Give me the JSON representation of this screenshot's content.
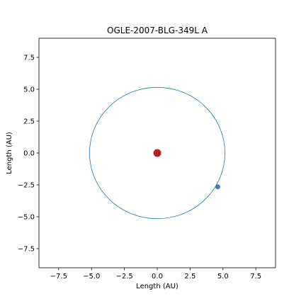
{
  "chart_data": {
    "type": "scatter",
    "title": "OGLE-2007-BLG-349L A",
    "xlabel": "Length (AU)",
    "ylabel": "Length (AU)",
    "xlim": [
      -9,
      9
    ],
    "ylim": [
      -9,
      9
    ],
    "grid": false,
    "x_ticks": [
      -7.5,
      -5.0,
      -2.5,
      0.0,
      2.5,
      5.0,
      7.5
    ],
    "x_tick_labels": [
      "−7.5",
      "−5.0",
      "−2.5",
      "0.0",
      "2.5",
      "5.0",
      "7.5"
    ],
    "y_ticks": [
      7.5,
      5.0,
      2.5,
      0.0,
      -2.5,
      -5.0,
      -7.5
    ],
    "y_tick_labels": [
      "7.5",
      "5.0",
      "2.5",
      "0.0",
      "−2.5",
      "−5.0",
      "−7.5"
    ],
    "star": {
      "x": 0.0,
      "y": 0.0,
      "color": "#b22222"
    },
    "orbit": {
      "center_x": 0.0,
      "center_y": 0.0,
      "radius": 5.15,
      "color": "#1f77b4"
    },
    "planet": {
      "x": 4.6,
      "y": -2.65,
      "color": "#4a7ab5"
    }
  }
}
